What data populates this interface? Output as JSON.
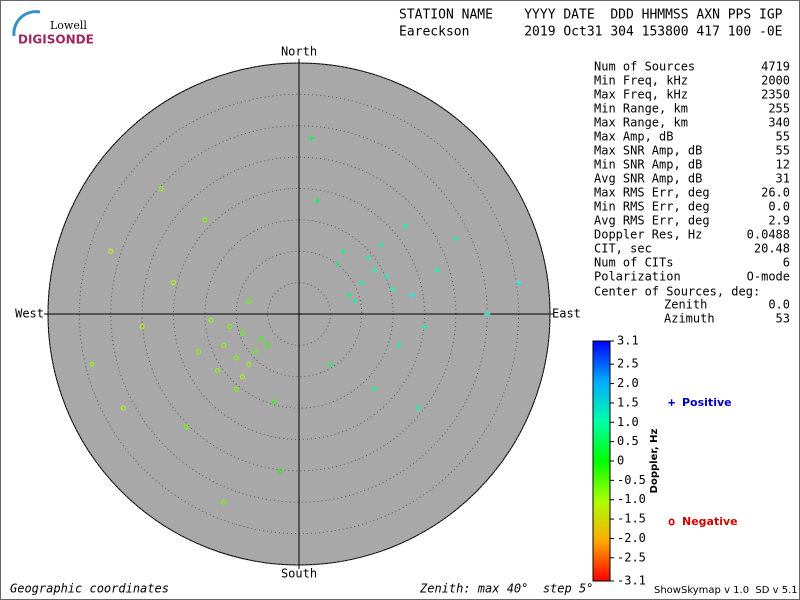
{
  "logo": {
    "top": "Lowell",
    "bottom": "DIGISONDE"
  },
  "header": {
    "line1": "STATION NAME    YYYY DATE  DDD HHMMSS AXN PPS IGP",
    "line2": "Eareckson       2019 Oct31 304 153800 417 100 -0E"
  },
  "stats": [
    [
      "Num of Sources",
      "4719"
    ],
    [
      "Min Freq, kHz",
      "2000"
    ],
    [
      "Max Freq, kHz",
      "2350"
    ],
    [
      "Min Range, km",
      "255"
    ],
    [
      "Max Range, km",
      "340"
    ],
    [
      "Max Amp, dB",
      "55"
    ],
    [
      "Max SNR Amp, dB",
      "55"
    ],
    [
      "Min SNR Amp, dB",
      "12"
    ],
    [
      "Avg SNR Amp, dB",
      "31"
    ],
    [
      "Max RMS Err, deg",
      "26.0"
    ],
    [
      "Min RMS Err, deg",
      "0.0"
    ],
    [
      "Avg RMS Err, deg",
      "2.9"
    ],
    [
      "Doppler Res, Hz",
      "0.0488"
    ],
    [
      "CIT, sec",
      "20.48"
    ],
    [
      "Num of CITs",
      "6"
    ],
    [
      "Polarization",
      "O-mode"
    ]
  ],
  "center": {
    "title": "Center of Sources, deg:",
    "rows": [
      [
        "Zenith",
        "0.0"
      ],
      [
        "Azimuth",
        "53"
      ]
    ]
  },
  "footer": {
    "left": "Geographic coordinates",
    "middle": "Zenith: max 40°  step 5°",
    "right": "ShowSkymap v 1.0  SD v 5.1"
  },
  "chart_data": {
    "type": "scatter",
    "directions": {
      "north": "North",
      "south": "South",
      "east": "East",
      "west": "West"
    },
    "xlim": [
      -40,
      40
    ],
    "ylim": [
      -40,
      40
    ],
    "rings": [
      5,
      10,
      15,
      20,
      25,
      30,
      35,
      40
    ],
    "x": [
      -12,
      -10,
      -9,
      -8,
      -11,
      -7,
      -13,
      -6,
      -9,
      -14,
      -5,
      -10,
      -16,
      -8,
      -20,
      -25,
      -30,
      -18,
      -4,
      -22,
      -15,
      -3,
      -28,
      -12,
      10,
      12,
      8,
      14,
      11,
      9,
      15,
      6,
      13,
      18,
      20,
      7,
      16,
      22,
      25,
      30,
      5,
      12,
      17,
      3,
      19,
      35,
      -33,
      2
    ],
    "y": [
      -5,
      -7,
      -3,
      -8,
      -2,
      -6,
      -9,
      -4,
      -10,
      -1,
      -5,
      -12,
      -6,
      2,
      5,
      -2,
      10,
      -18,
      -14,
      20,
      15,
      -25,
      -15,
      -30,
      5,
      7,
      3,
      6,
      9,
      2,
      4,
      8,
      11,
      3,
      -2,
      10,
      -5,
      7,
      12,
      0,
      -8,
      -12,
      14,
      18,
      -15,
      5,
      -8,
      28
    ],
    "doppler": [
      -0.8,
      -0.7,
      -0.6,
      -0.9,
      -0.7,
      -0.5,
      -0.8,
      -0.4,
      -1.0,
      -0.9,
      -0.3,
      -0.7,
      -0.8,
      -0.5,
      -1.1,
      -1.0,
      -1.2,
      -0.6,
      -0.3,
      -0.9,
      -0.8,
      -0.2,
      -1.0,
      -0.6,
      1.0,
      1.1,
      0.8,
      1.2,
      1.0,
      0.9,
      1.1,
      0.7,
      1.0,
      1.3,
      0.9,
      0.8,
      1.0,
      1.2,
      0.9,
      1.4,
      0.6,
      0.8,
      1.1,
      0.5,
      1.0,
      1.5,
      -0.9,
      0.4
    ],
    "colorbar": {
      "label": "Doppler, Hz",
      "clim": [
        -3.1,
        3.1
      ],
      "ticks": [
        3.1,
        2.5,
        {
          "value": 2,
          "label": "2.0"
        },
        1.5,
        {
          "value": 1,
          "label": "1.0"
        },
        0.5,
        0,
        -0.5,
        {
          "value": -1,
          "label": "-1.0"
        },
        -1.5,
        {
          "value": -2,
          "label": "-2.0"
        },
        -2.5,
        -3.1
      ]
    },
    "legend": {
      "positive": {
        "symbol": "+",
        "name": "Positive",
        "color": "#0000c0"
      },
      "negative": {
        "symbol": "o",
        "name": "Negative",
        "color": "#d00000"
      }
    }
  }
}
